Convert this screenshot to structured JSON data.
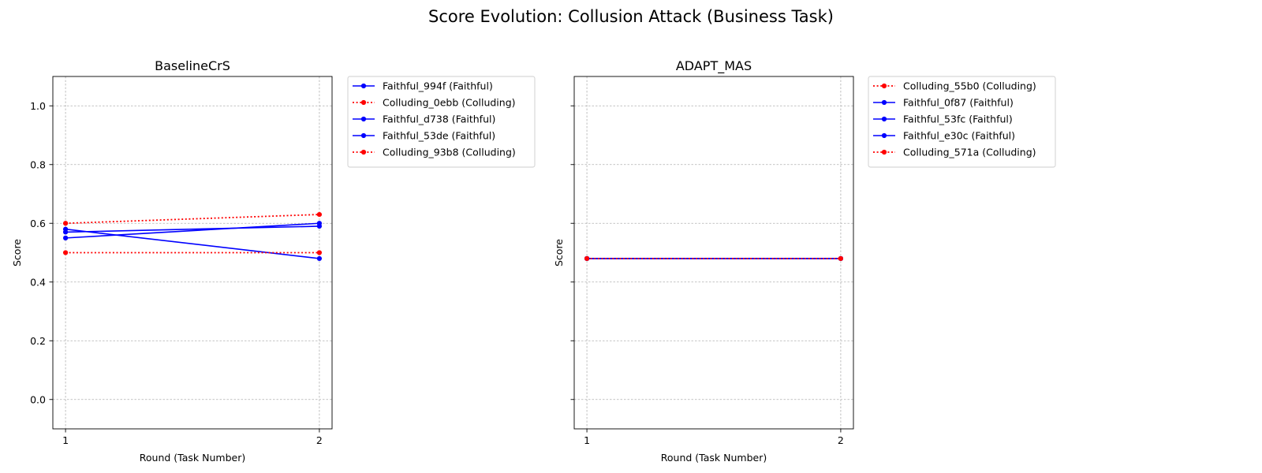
{
  "figure": {
    "title": "Score Evolution: Collusion Attack (Business Task)"
  },
  "chart_data": [
    {
      "type": "line",
      "title": "BaselineCrS",
      "xlabel": "Round (Task Number)",
      "ylabel": "Score",
      "x": [
        1,
        2
      ],
      "x_tick_labels": [
        "1",
        "2"
      ],
      "xlim": [
        0.95,
        2.05
      ],
      "ylim": [
        -0.1,
        1.1
      ],
      "y_ticks": [
        0.0,
        0.2,
        0.4,
        0.6,
        0.8,
        1.0
      ],
      "y_tick_labels": [
        "0.0",
        "0.2",
        "0.4",
        "0.6",
        "0.8",
        "1.0"
      ],
      "grid": true,
      "legend_position": "outside-upper-right",
      "series": [
        {
          "name": "Faithful_994f (Faithful)",
          "values": [
            0.55,
            0.6
          ],
          "color": "#0000ff",
          "style": "solid"
        },
        {
          "name": "Colluding_0ebb (Colluding)",
          "values": [
            0.6,
            0.63
          ],
          "color": "#ff0000",
          "style": "dotted"
        },
        {
          "name": "Faithful_d738 (Faithful)",
          "values": [
            0.58,
            0.48
          ],
          "color": "#0000ff",
          "style": "solid"
        },
        {
          "name": "Faithful_53de (Faithful)",
          "values": [
            0.57,
            0.59
          ],
          "color": "#0000ff",
          "style": "solid"
        },
        {
          "name": "Colluding_93b8 (Colluding)",
          "values": [
            0.5,
            0.5
          ],
          "color": "#ff0000",
          "style": "dotted"
        }
      ]
    },
    {
      "type": "line",
      "title": "ADAPT_MAS",
      "xlabel": "Round (Task Number)",
      "ylabel": "Score",
      "x": [
        1,
        2
      ],
      "x_tick_labels": [
        "1",
        "2"
      ],
      "xlim": [
        0.95,
        2.05
      ],
      "ylim": [
        -0.1,
        1.1
      ],
      "y_ticks": [
        0.0,
        0.2,
        0.4,
        0.6,
        0.8,
        1.0
      ],
      "y_tick_labels": [],
      "grid": true,
      "legend_position": "outside-upper-right",
      "series": [
        {
          "name": "Colluding_55b0 (Colluding)",
          "values": [
            0.48,
            0.48
          ],
          "color": "#ff0000",
          "style": "dotted"
        },
        {
          "name": "Faithful_0f87 (Faithful)",
          "values": [
            0.48,
            0.48
          ],
          "color": "#0000ff",
          "style": "solid"
        },
        {
          "name": "Faithful_53fc (Faithful)",
          "values": [
            0.48,
            0.48
          ],
          "color": "#0000ff",
          "style": "solid"
        },
        {
          "name": "Faithful_e30c (Faithful)",
          "values": [
            0.48,
            0.48
          ],
          "color": "#0000ff",
          "style": "solid"
        },
        {
          "name": "Colluding_571a (Colluding)",
          "values": [
            0.48,
            0.48
          ],
          "color": "#ff0000",
          "style": "dotted"
        }
      ]
    }
  ]
}
